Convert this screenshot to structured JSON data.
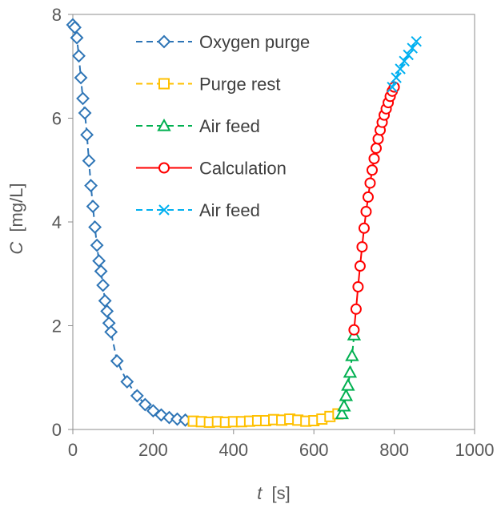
{
  "chart_data": {
    "type": "scatter",
    "title": "",
    "xlabel": {
      "var": "t",
      "unit": "[s]"
    },
    "ylabel": {
      "var": "C",
      "unit": "[mg/L]"
    },
    "xlim": [
      0,
      1000
    ],
    "ylim": [
      0,
      8
    ],
    "x_ticks": [
      0,
      200,
      400,
      600,
      800,
      1000
    ],
    "y_ticks": [
      0,
      2,
      4,
      6,
      8
    ],
    "grid": false,
    "legend": "top-center",
    "series": [
      {
        "name": "Oxygen purge",
        "color": "#2E75B6",
        "line": "dashed",
        "marker": "diamond",
        "x": [
          0,
          5,
          10,
          15,
          20,
          25,
          30,
          35,
          40,
          45,
          50,
          55,
          60,
          65,
          70,
          75,
          80,
          85,
          90,
          95,
          110,
          135,
          160,
          180,
          200,
          220,
          240,
          260,
          280
        ],
        "y": [
          7.8,
          7.75,
          7.55,
          7.2,
          6.78,
          6.38,
          6.1,
          5.68,
          5.18,
          4.7,
          4.3,
          3.9,
          3.55,
          3.25,
          3.05,
          2.78,
          2.48,
          2.28,
          2.05,
          1.88,
          1.32,
          0.92,
          0.65,
          0.48,
          0.36,
          0.28,
          0.23,
          0.2,
          0.18
        ]
      },
      {
        "name": "Purge rest",
        "color": "#FFC000",
        "line": "dashed",
        "marker": "square",
        "x": [
          300,
          320,
          340,
          360,
          380,
          400,
          420,
          440,
          460,
          480,
          500,
          520,
          540,
          560,
          580,
          600,
          620,
          640,
          660
        ],
        "y": [
          0.16,
          0.15,
          0.14,
          0.15,
          0.14,
          0.15,
          0.15,
          0.16,
          0.17,
          0.17,
          0.19,
          0.18,
          0.2,
          0.18,
          0.16,
          0.17,
          0.2,
          0.25,
          0.3
        ]
      },
      {
        "name": "Air feed",
        "color": "#00B050",
        "line": "dashed",
        "marker": "triangle",
        "x": [
          670,
          675,
          680,
          685,
          690,
          695,
          700
        ],
        "y": [
          0.3,
          0.45,
          0.65,
          0.85,
          1.1,
          1.42,
          1.82
        ]
      },
      {
        "name": "Calculation",
        "color": "#FF0000",
        "line": "solid",
        "marker": "circle",
        "x": [
          700,
          705,
          710,
          715,
          720,
          725,
          730,
          735,
          740,
          745,
          750,
          755,
          760,
          765,
          770,
          775,
          780,
          785,
          790,
          795,
          800
        ],
        "y": [
          1.92,
          2.32,
          2.75,
          3.15,
          3.52,
          3.88,
          4.2,
          4.48,
          4.75,
          5.0,
          5.22,
          5.42,
          5.6,
          5.77,
          5.92,
          6.06,
          6.18,
          6.3,
          6.42,
          6.52,
          6.6
        ]
      },
      {
        "name": "Air feed",
        "color": "#00B0F0",
        "line": "dashed",
        "marker": "x",
        "x": [
          795,
          805,
          815,
          825,
          835,
          845,
          855
        ],
        "y": [
          6.6,
          6.78,
          6.95,
          7.1,
          7.22,
          7.35,
          7.48
        ]
      }
    ]
  }
}
